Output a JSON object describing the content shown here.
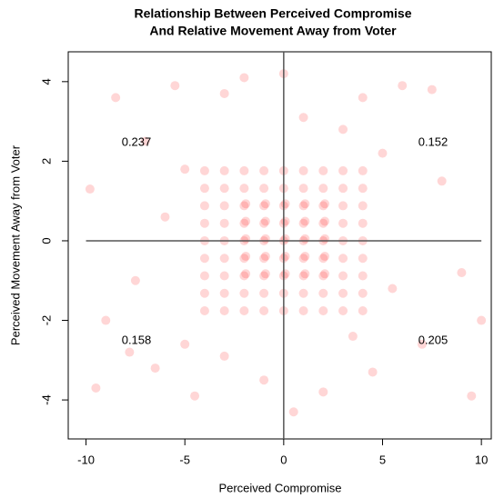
{
  "chart_data": {
    "type": "scatter",
    "title": [
      "Relationship Between Perceived Compromise",
      "And Relative Movement Away from Voter"
    ],
    "x_label": "Perceived Compromise",
    "y_label": "Perceived Movement Away from Voter",
    "xlim": [
      -10.9,
      10.5
    ],
    "ylim": [
      -4.98,
      4.75
    ],
    "xticks": [
      -10,
      -5,
      0,
      5,
      10
    ],
    "yticks": [
      -4,
      -2,
      0,
      2,
      4
    ],
    "grid": false,
    "color": "#ff0000",
    "alpha": 0.16,
    "reference_lines": {
      "h": 0,
      "v": 0
    },
    "quadrant_labels": {
      "top_left": 0.237,
      "top_right": 0.152,
      "bottom_left": 0.158,
      "bottom_right": 0.205
    },
    "x": [
      -4,
      -4,
      -4,
      -4,
      -4,
      -4,
      -4,
      -4,
      -4,
      -3,
      -3,
      -3,
      -3,
      -3,
      -3,
      -3,
      -3,
      -3,
      -2,
      -2,
      -2,
      -2,
      -2,
      -2,
      -2,
      -2,
      -2,
      -1,
      -1,
      -1,
      -1,
      -1,
      -1,
      -1,
      -1,
      -1,
      0,
      0,
      0,
      0,
      0,
      0,
      0,
      0,
      0,
      1,
      1,
      1,
      1,
      1,
      1,
      1,
      1,
      1,
      2,
      2,
      2,
      2,
      2,
      2,
      2,
      2,
      2,
      3,
      3,
      3,
      3,
      3,
      3,
      3,
      3,
      3,
      4,
      4,
      4,
      4,
      4,
      4,
      4,
      4,
      4,
      -1.92,
      -1.92,
      -1.92,
      -1.92,
      -1.92,
      -0.92,
      -0.92,
      -0.92,
      -0.92,
      -0.92,
      0.08,
      0.08,
      0.08,
      0.08,
      0.08,
      1.08,
      1.08,
      1.08,
      1.08,
      1.08,
      2.08,
      2.08,
      2.08,
      2.08,
      2.08,
      -9.8,
      -9,
      -8.5,
      -7.5,
      -7,
      -6.5,
      -6,
      -5.5,
      -5,
      -5,
      -4.5,
      -3,
      -3,
      -2,
      -1,
      0,
      0.5,
      1,
      2,
      3,
      3.5,
      4,
      4.5,
      5,
      5.5,
      6,
      7,
      8,
      9,
      10,
      9.5,
      -9.5,
      7.5,
      -7.8
    ],
    "values": [
      -1.76,
      -1.32,
      -0.88,
      -0.44,
      0,
      0.44,
      0.88,
      1.32,
      1.76,
      -1.76,
      -1.32,
      -0.88,
      -0.44,
      0,
      0.44,
      0.88,
      1.32,
      1.76,
      -1.76,
      -1.32,
      -0.88,
      -0.44,
      0,
      0.44,
      0.88,
      1.32,
      1.76,
      -1.76,
      -1.32,
      -0.88,
      -0.44,
      0,
      0.44,
      0.88,
      1.32,
      1.76,
      -1.76,
      -1.32,
      -0.88,
      -0.44,
      0,
      0.44,
      0.88,
      1.32,
      1.76,
      -1.76,
      -1.32,
      -0.88,
      -0.44,
      0,
      0.44,
      0.88,
      1.32,
      1.76,
      -1.76,
      -1.32,
      -0.88,
      -0.44,
      0,
      0.44,
      0.88,
      1.32,
      1.76,
      -1.76,
      -1.32,
      -0.88,
      -0.44,
      0,
      0.44,
      0.88,
      1.32,
      1.76,
      -1.76,
      -1.32,
      -0.88,
      -0.44,
      0,
      0.44,
      0.88,
      1.32,
      1.76,
      -0.83,
      -0.39,
      0.05,
      0.49,
      0.93,
      -0.83,
      -0.39,
      0.05,
      0.49,
      0.93,
      -0.83,
      -0.39,
      0.05,
      0.49,
      0.93,
      -0.83,
      -0.39,
      0.05,
      0.49,
      0.93,
      -0.83,
      -0.39,
      0.05,
      0.49,
      0.93,
      1.3,
      -2,
      3.6,
      -1,
      2.5,
      -3.2,
      0.6,
      3.9,
      -2.6,
      1.8,
      -3.9,
      3.7,
      -2.9,
      4.1,
      -3.5,
      4.2,
      -4.3,
      3.1,
      -3.8,
      2.8,
      -2.4,
      3.6,
      -3.3,
      2.2,
      -1.2,
      3.9,
      -2.6,
      1.5,
      -0.8,
      -2,
      -3.9,
      -3.7,
      3.8,
      -2.8
    ]
  }
}
